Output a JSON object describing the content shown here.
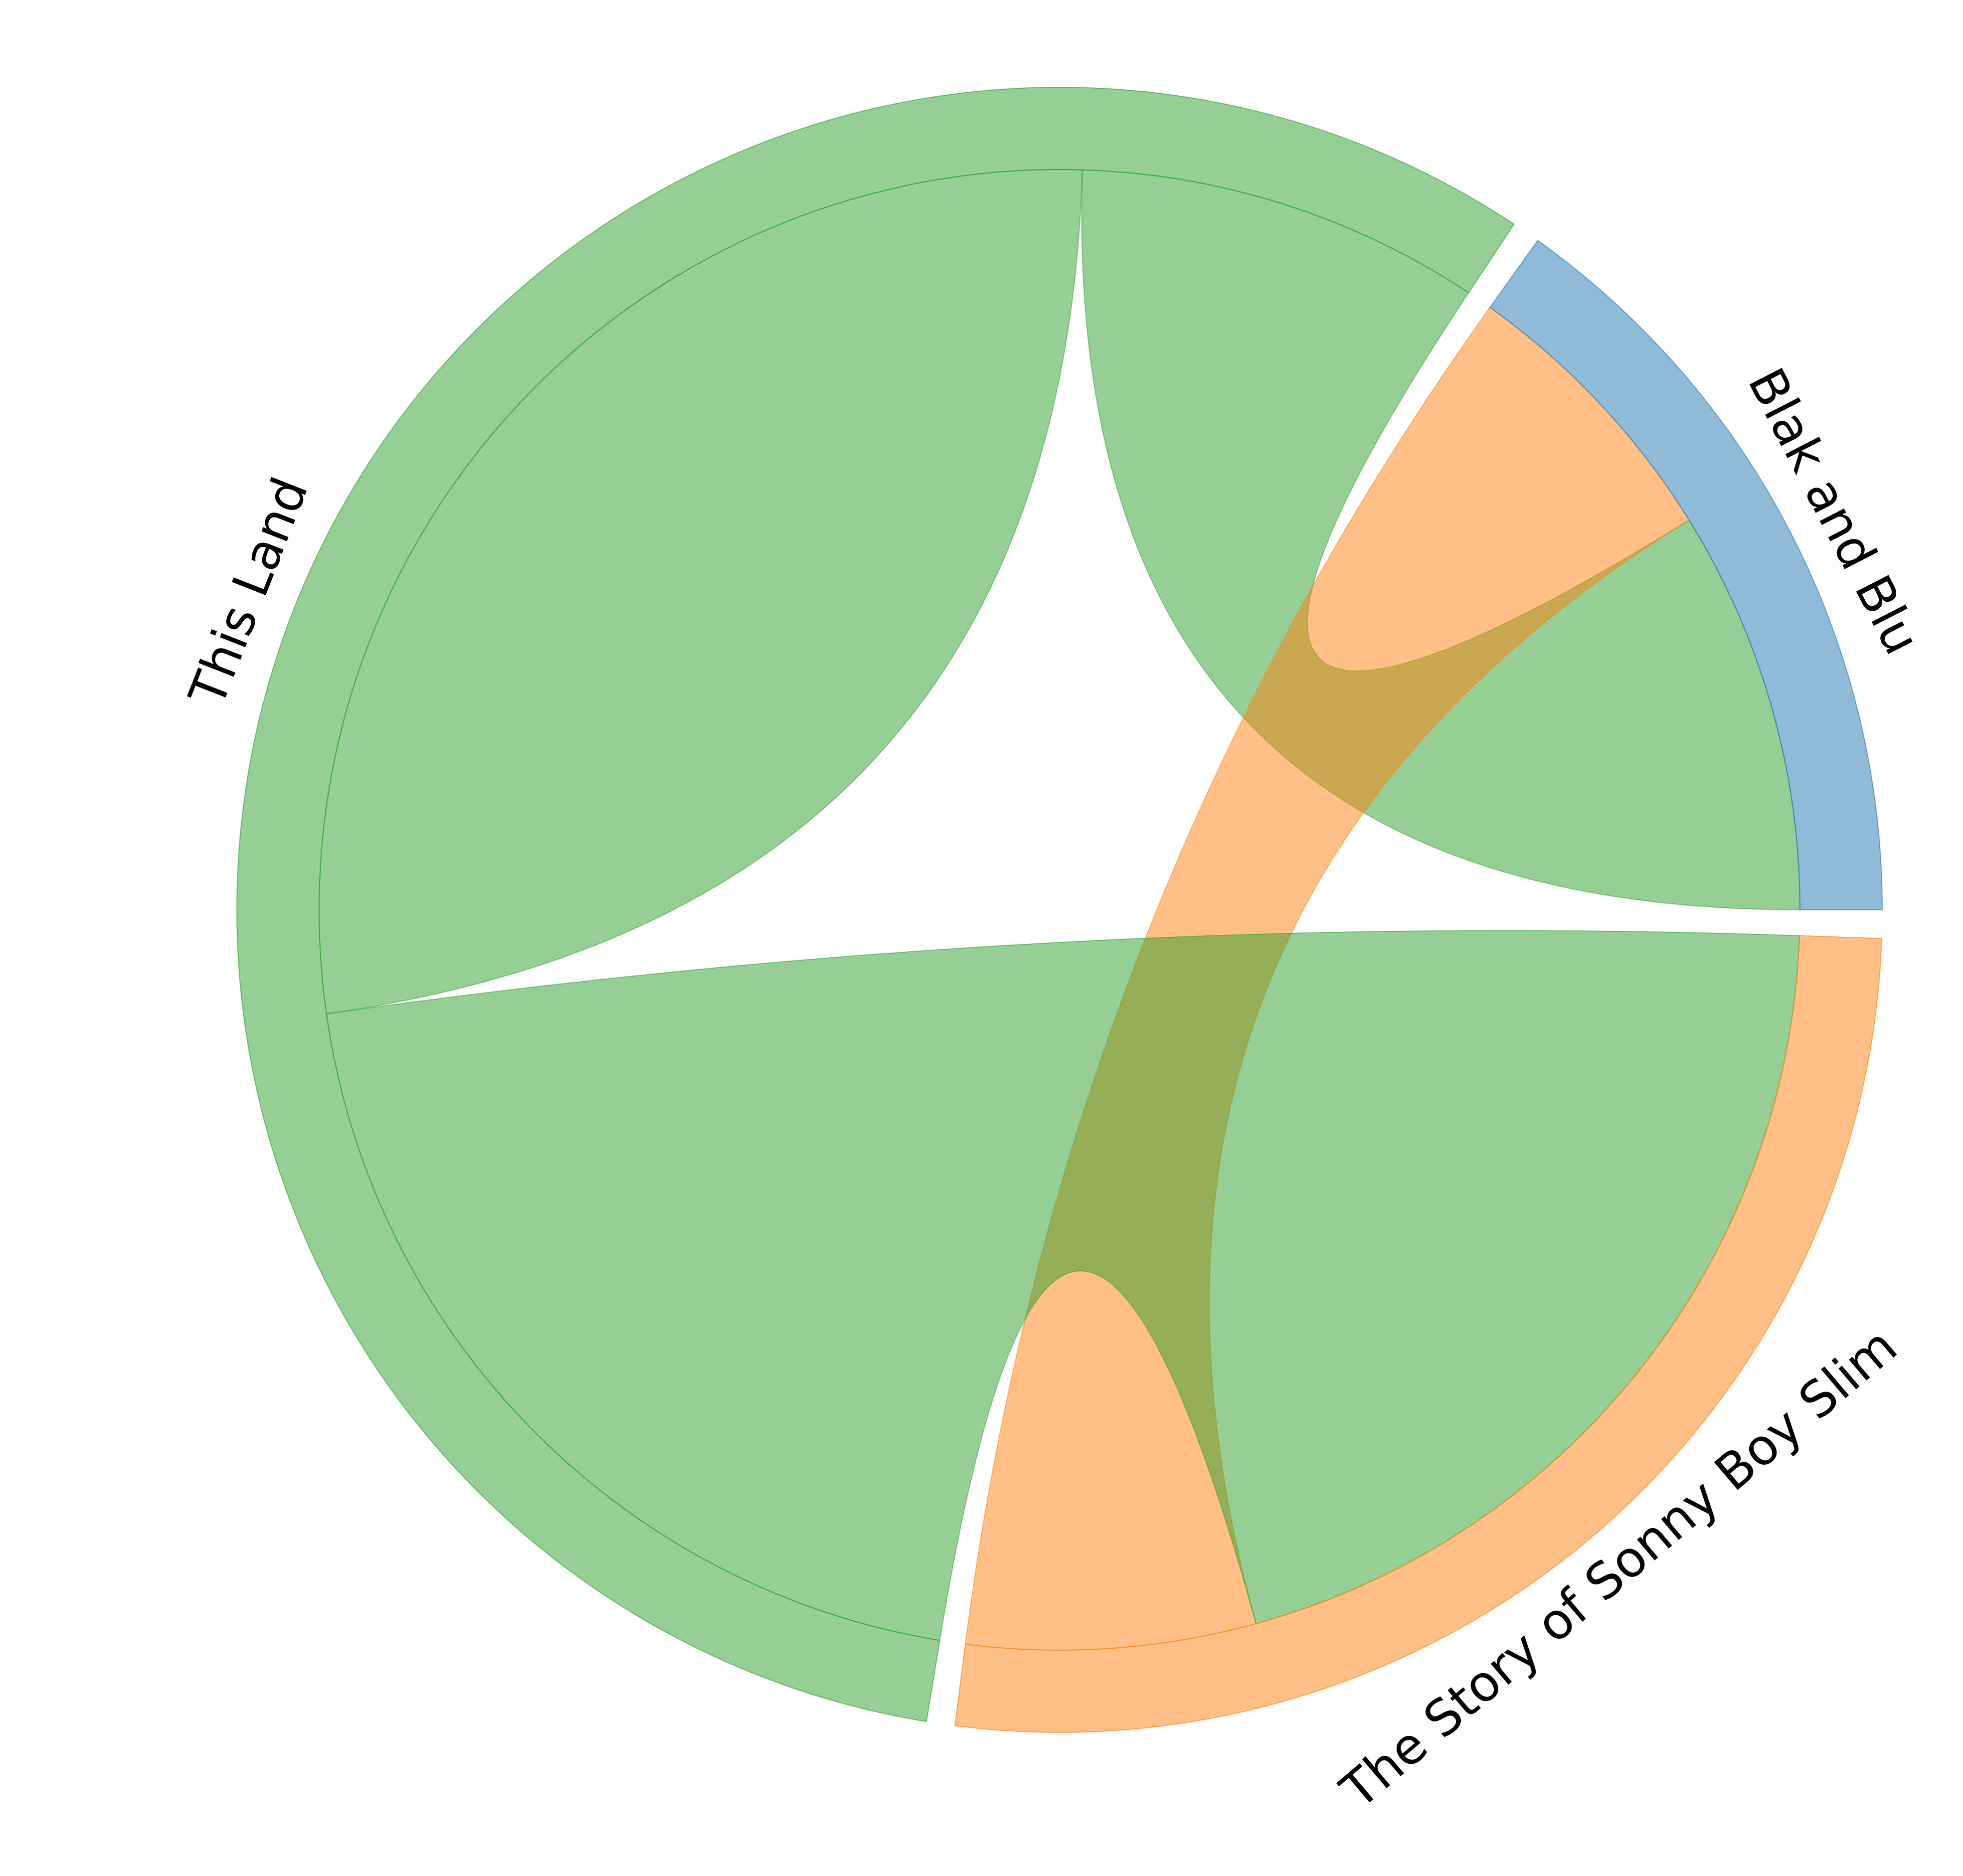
{
  "chart_data": {
    "type": "chord",
    "groups": [
      {
        "name": "Blak and Blu",
        "color": "#1f77b4"
      },
      {
        "name": "This Land",
        "color": "#2ca02c"
      },
      {
        "name": "The Story of Sonny Boy Slim",
        "color": "#ff7f0e"
      }
    ],
    "matrix": [
      [
        0,
        7,
        5
      ],
      [
        7,
        22,
        16
      ],
      [
        5,
        16,
        0
      ]
    ],
    "legend": "none"
  }
}
